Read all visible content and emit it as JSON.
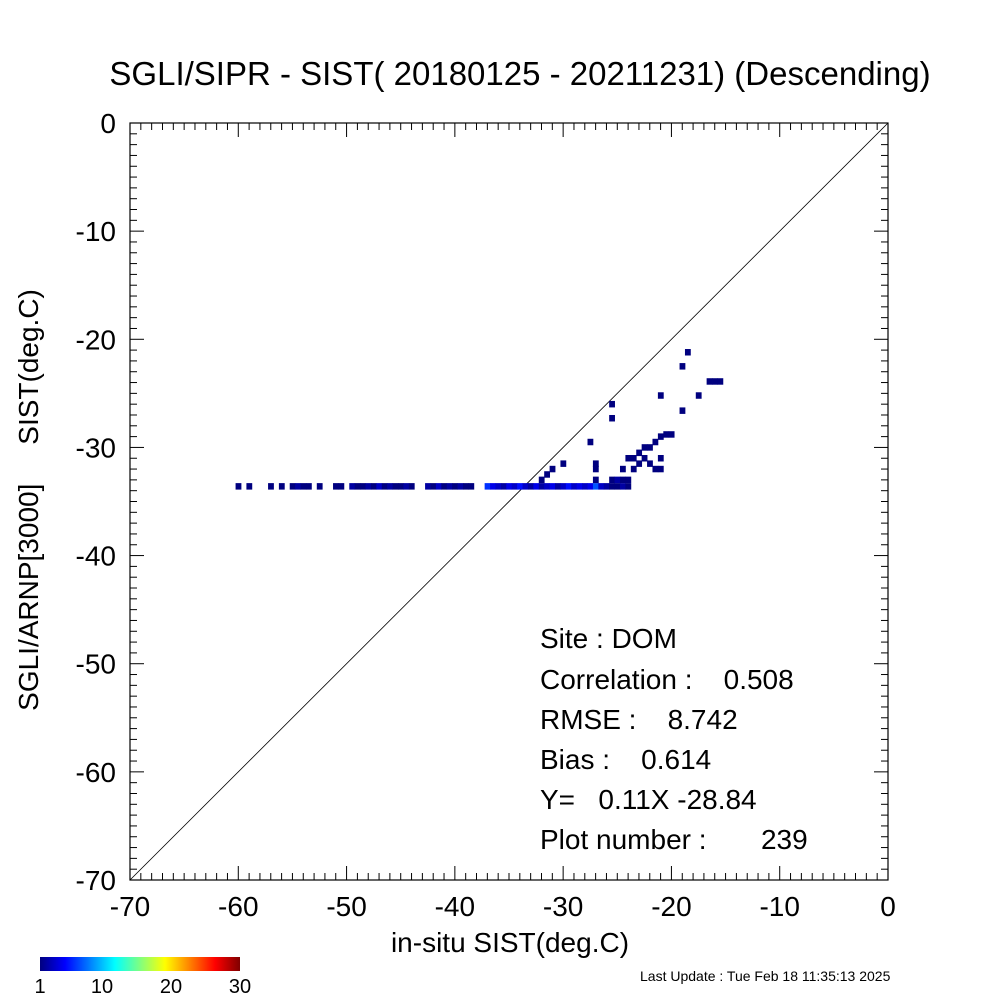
{
  "title": "SGLI/SIPR - SIST( 20180125 - 20211231) (Descending)",
  "footer": {
    "last_update": "Last Update : Tue Feb 18 11:35:13 2025"
  },
  "stats": {
    "site": "Site : DOM",
    "correlation": "Correlation :    0.508",
    "rmse": "RMSE :    8.742",
    "bias": "Bias :    0.614",
    "regression": "Y=   0.11X -28.84",
    "plot_number": "Plot number :       239"
  },
  "colorbar": {
    "ticks": [
      "1",
      "10",
      "20",
      "30"
    ],
    "min": 1,
    "max": 30,
    "colors": [
      "#00007f",
      "#0000ff",
      "#0080ff",
      "#00ffff",
      "#80ff80",
      "#ffff00",
      "#ff8000",
      "#ff0000",
      "#7f0000"
    ]
  },
  "chart_data": {
    "type": "heatmap",
    "title": "SGLI/SIPR - SIST( 20180125 - 20211231) (Descending)",
    "xlabel": "in-situ SIST(deg.C)",
    "ylabel": "SGLI/ARNP[3000]     SIST(deg.C)",
    "xlim": [
      -70,
      0
    ],
    "ylim": [
      -70,
      0
    ],
    "xticks": [
      "-70",
      "-60",
      "-50",
      "-40",
      "-30",
      "-20",
      "-10",
      "0"
    ],
    "yticks": [
      "0",
      "-10",
      "-20",
      "-30",
      "-40",
      "-50",
      "-60",
      "-70"
    ],
    "reference_line": "y = x",
    "cell_size_deg": 0.5,
    "points": [
      {
        "x": -60.0,
        "y": -33.6,
        "c": 1
      },
      {
        "x": -59.0,
        "y": -33.6,
        "c": 1
      },
      {
        "x": -57.0,
        "y": -33.6,
        "c": 1
      },
      {
        "x": -56.0,
        "y": -33.6,
        "c": 1
      },
      {
        "x": -55.0,
        "y": -33.6,
        "c": 1
      },
      {
        "x": -54.5,
        "y": -33.6,
        "c": 2
      },
      {
        "x": -54.0,
        "y": -33.6,
        "c": 1
      },
      {
        "x": -53.5,
        "y": -33.6,
        "c": 1
      },
      {
        "x": -52.5,
        "y": -33.6,
        "c": 1
      },
      {
        "x": -51.0,
        "y": -33.6,
        "c": 1
      },
      {
        "x": -50.5,
        "y": -33.6,
        "c": 1
      },
      {
        "x": -49.5,
        "y": -33.6,
        "c": 2
      },
      {
        "x": -49.0,
        "y": -33.6,
        "c": 1
      },
      {
        "x": -48.5,
        "y": -33.6,
        "c": 1
      },
      {
        "x": -48.0,
        "y": -33.6,
        "c": 2
      },
      {
        "x": -47.5,
        "y": -33.6,
        "c": 1
      },
      {
        "x": -47.0,
        "y": -33.6,
        "c": 3
      },
      {
        "x": -46.5,
        "y": -33.6,
        "c": 1
      },
      {
        "x": -46.0,
        "y": -33.6,
        "c": 2
      },
      {
        "x": -45.5,
        "y": -33.6,
        "c": 1
      },
      {
        "x": -45.0,
        "y": -33.6,
        "c": 1
      },
      {
        "x": -44.5,
        "y": -33.6,
        "c": 2
      },
      {
        "x": -44.0,
        "y": -33.6,
        "c": 1
      },
      {
        "x": -42.5,
        "y": -33.6,
        "c": 2
      },
      {
        "x": -42.0,
        "y": -33.6,
        "c": 1
      },
      {
        "x": -41.5,
        "y": -33.6,
        "c": 3
      },
      {
        "x": -41.0,
        "y": -33.6,
        "c": 1
      },
      {
        "x": -40.5,
        "y": -33.6,
        "c": 2
      },
      {
        "x": -40.0,
        "y": -33.6,
        "c": 1
      },
      {
        "x": -39.5,
        "y": -33.6,
        "c": 2
      },
      {
        "x": -39.0,
        "y": -33.6,
        "c": 1
      },
      {
        "x": -38.5,
        "y": -33.6,
        "c": 1
      },
      {
        "x": -37.0,
        "y": -33.6,
        "c": 6
      },
      {
        "x": -36.5,
        "y": -33.6,
        "c": 4
      },
      {
        "x": -36.0,
        "y": -33.6,
        "c": 3
      },
      {
        "x": -35.5,
        "y": -33.6,
        "c": 2
      },
      {
        "x": -35.0,
        "y": -33.6,
        "c": 4
      },
      {
        "x": -34.5,
        "y": -33.6,
        "c": 3
      },
      {
        "x": -34.0,
        "y": -33.6,
        "c": 5
      },
      {
        "x": -33.5,
        "y": -33.6,
        "c": 3
      },
      {
        "x": -33.0,
        "y": -33.6,
        "c": 2
      },
      {
        "x": -32.5,
        "y": -33.6,
        "c": 4
      },
      {
        "x": -32.0,
        "y": -33.6,
        "c": 2
      },
      {
        "x": -31.5,
        "y": -33.6,
        "c": 3
      },
      {
        "x": -31.0,
        "y": -33.6,
        "c": 4
      },
      {
        "x": -30.5,
        "y": -33.6,
        "c": 2
      },
      {
        "x": -30.0,
        "y": -33.6,
        "c": 3
      },
      {
        "x": -29.5,
        "y": -33.6,
        "c": 5
      },
      {
        "x": -29.0,
        "y": -33.6,
        "c": 3
      },
      {
        "x": -28.5,
        "y": -33.6,
        "c": 4
      },
      {
        "x": -28.0,
        "y": -33.6,
        "c": 3
      },
      {
        "x": -27.5,
        "y": -33.6,
        "c": 4
      },
      {
        "x": -27.0,
        "y": -33.6,
        "c": 7
      },
      {
        "x": -26.5,
        "y": -33.6,
        "c": 3
      },
      {
        "x": -26.0,
        "y": -33.6,
        "c": 2
      },
      {
        "x": -25.5,
        "y": -33.6,
        "c": 1
      },
      {
        "x": -25.0,
        "y": -33.6,
        "c": 1
      },
      {
        "x": -24.5,
        "y": -33.6,
        "c": 2
      },
      {
        "x": -24.0,
        "y": -33.6,
        "c": 1
      },
      {
        "x": -25.5,
        "y": -33.0,
        "c": 1
      },
      {
        "x": -25.0,
        "y": -33.0,
        "c": 2
      },
      {
        "x": -24.5,
        "y": -33.0,
        "c": 1
      },
      {
        "x": -24.0,
        "y": -33.0,
        "c": 1
      },
      {
        "x": -32.0,
        "y": -33.0,
        "c": 1
      },
      {
        "x": -31.5,
        "y": -32.5,
        "c": 1
      },
      {
        "x": -31.0,
        "y": -32.0,
        "c": 1
      },
      {
        "x": -30.0,
        "y": -31.5,
        "c": 1
      },
      {
        "x": -27.0,
        "y": -31.5,
        "c": 1
      },
      {
        "x": -27.0,
        "y": -32.0,
        "c": 1
      },
      {
        "x": -27.0,
        "y": -33.0,
        "c": 1
      },
      {
        "x": -27.5,
        "y": -29.5,
        "c": 1
      },
      {
        "x": -25.5,
        "y": -26.0,
        "c": 1
      },
      {
        "x": -25.5,
        "y": -27.3,
        "c": 1
      },
      {
        "x": -24.5,
        "y": -32.0,
        "c": 1
      },
      {
        "x": -24.0,
        "y": -31.0,
        "c": 1
      },
      {
        "x": -23.5,
        "y": -31.0,
        "c": 1
      },
      {
        "x": -23.5,
        "y": -32.0,
        "c": 1
      },
      {
        "x": -23.0,
        "y": -30.5,
        "c": 1
      },
      {
        "x": -23.0,
        "y": -31.5,
        "c": 1
      },
      {
        "x": -22.5,
        "y": -30.0,
        "c": 1
      },
      {
        "x": -22.5,
        "y": -31.0,
        "c": 1
      },
      {
        "x": -22.0,
        "y": -30.0,
        "c": 1
      },
      {
        "x": -22.0,
        "y": -31.5,
        "c": 1
      },
      {
        "x": -21.5,
        "y": -29.5,
        "c": 1
      },
      {
        "x": -21.5,
        "y": -32.0,
        "c": 1
      },
      {
        "x": -21.0,
        "y": -29.0,
        "c": 1
      },
      {
        "x": -21.0,
        "y": -31.0,
        "c": 1
      },
      {
        "x": -20.5,
        "y": -28.8,
        "c": 1
      },
      {
        "x": -20.0,
        "y": -28.8,
        "c": 1
      },
      {
        "x": -21.0,
        "y": -32.0,
        "c": 1
      },
      {
        "x": -21.0,
        "y": -25.2,
        "c": 1
      },
      {
        "x": -19.0,
        "y": -26.6,
        "c": 1
      },
      {
        "x": -19.0,
        "y": -22.5,
        "c": 1
      },
      {
        "x": -18.5,
        "y": -21.2,
        "c": 1
      },
      {
        "x": -17.5,
        "y": -25.2,
        "c": 1
      },
      {
        "x": -16.5,
        "y": -23.9,
        "c": 1
      },
      {
        "x": -16.0,
        "y": -23.9,
        "c": 1
      },
      {
        "x": -15.5,
        "y": -23.9,
        "c": 1
      }
    ]
  }
}
